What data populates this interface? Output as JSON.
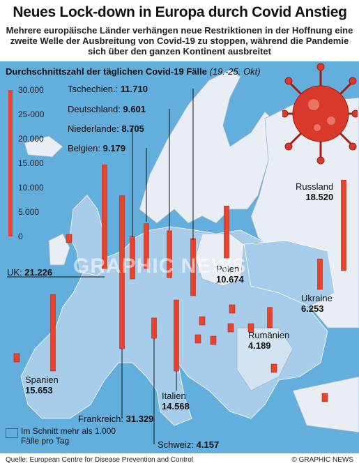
{
  "title": "Neues Lock-down in Europa durch Covid Anstieg",
  "subtitle": "Mehrere europäische Länder verhängen neue Restriktionen in der Hoffnung eine zweite Welle der Ausbreitung von Covid-19 zu stoppen, während die Pandemie sich über den ganzen Kontinent ausbreitet",
  "legend": {
    "text": "Im Schnitt mehr als 1.000 Fälle pro Tag",
    "swatch_color": "#62aedc"
  },
  "source": "Quelle: European Centre for Disease Prevention and Control",
  "credit": "© GRAPHIC NEWS",
  "watermark": "GRAPHIC NEWS",
  "colors": {
    "bar": "#e8432d",
    "sea": "#62aedc",
    "land_high": "#a8cdeb",
    "land_low": "#e8eef4",
    "virus": "#d9392a"
  },
  "chart_data": {
    "type": "bar",
    "title": "Durchschnittszahl der täglichen Covid-19 Fälle",
    "title_note": "(19.-25. Okt)",
    "ylim": [
      0,
      30000
    ],
    "yticks": [
      "30.000",
      "25-000",
      "20.000",
      "15.000",
      "10.000",
      "5.000",
      "0"
    ],
    "categories": [
      "UK",
      "Frankreich",
      "Spanien",
      "Belgien",
      "Niederlande",
      "Deutschland",
      "Tschechien.",
      "Polen",
      "Italien",
      "Schweiz",
      "Russland",
      "Ukraine",
      "Rumänien"
    ],
    "values": [
      21226,
      31329,
      15653,
      9179,
      8705,
      9601,
      11710,
      10674,
      14568,
      4157,
      18520,
      6253,
      4189
    ],
    "value_labels": [
      "21.226",
      "31.329",
      "15.653",
      "9.179",
      "8.705",
      "9.601",
      "11.710",
      "10.674",
      "14.568",
      "4.157",
      "18.520",
      "6.253",
      "4.189"
    ],
    "small_markers_note": "unlabelled small bars for other countries"
  }
}
